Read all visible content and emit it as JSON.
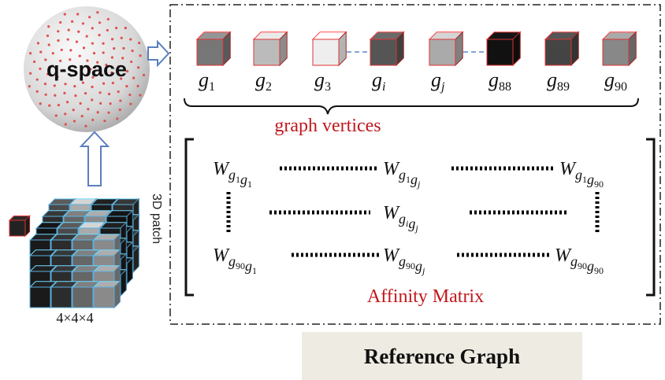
{
  "sphere_label": "q-space",
  "patch": {
    "label": "3D patch",
    "size": "4×4×4"
  },
  "vertices": [
    {
      "base": "g",
      "sub": "1"
    },
    {
      "base": "g",
      "sub": "2"
    },
    {
      "base": "g",
      "sub": "3"
    },
    {
      "base": "g",
      "sub": "i"
    },
    {
      "base": "g",
      "sub": "j"
    },
    {
      "base": "g",
      "sub": "88"
    },
    {
      "base": "g",
      "sub": "89"
    },
    {
      "base": "g",
      "sub": "90"
    }
  ],
  "vertices_caption": "graph vertices",
  "matrix": {
    "entries": [
      {
        "base": "W",
        "sub": [
          {
            "base": "g",
            "sub": "1"
          },
          {
            "base": "g",
            "sub": "1"
          }
        ]
      },
      {
        "base": "W",
        "sub": [
          {
            "base": "g",
            "sub": "1"
          },
          {
            "base": "g",
            "sub": "j"
          }
        ]
      },
      {
        "base": "W",
        "sub": [
          {
            "base": "g",
            "sub": "1"
          },
          {
            "base": "g",
            "sub": "90"
          }
        ]
      },
      {
        "base": "W",
        "sub": [
          {
            "base": "g",
            "sub": "i"
          },
          {
            "base": "g",
            "sub": "j"
          }
        ]
      },
      {
        "base": "W",
        "sub": [
          {
            "base": "g",
            "sub": "90"
          },
          {
            "base": "g",
            "sub": "1"
          }
        ]
      },
      {
        "base": "W",
        "sub": [
          {
            "base": "g",
            "sub": "90"
          },
          {
            "base": "g",
            "sub": "j"
          }
        ]
      },
      {
        "base": "W",
        "sub": [
          {
            "base": "g",
            "sub": "90"
          },
          {
            "base": "g",
            "sub": "90"
          }
        ]
      }
    ],
    "caption": "Affinity Matrix"
  },
  "footer": "Reference Graph"
}
